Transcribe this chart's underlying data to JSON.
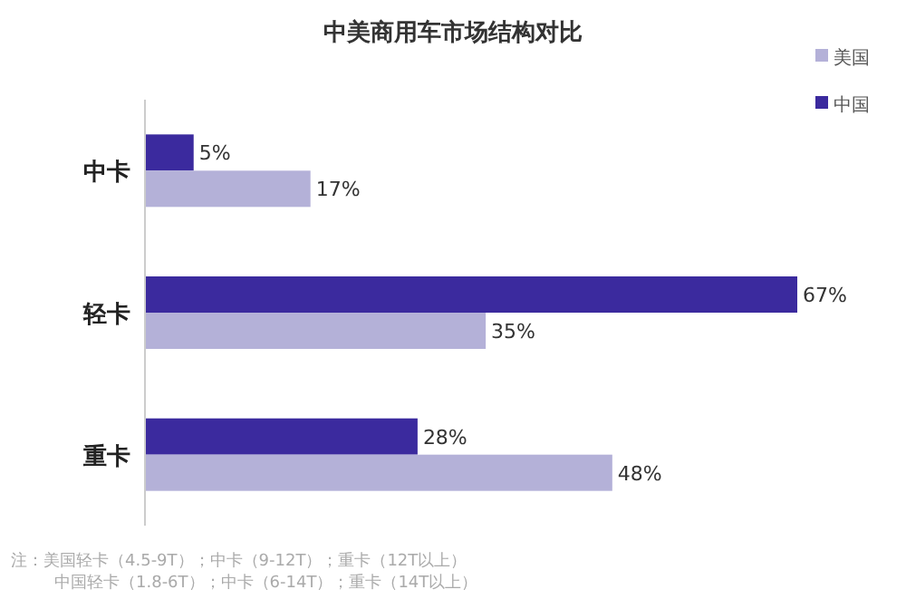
{
  "chart_data": {
    "type": "bar",
    "orientation": "horizontal",
    "title": "中美商用车市场结构对比",
    "categories": [
      "中卡",
      "轻卡",
      "重卡"
    ],
    "series": [
      {
        "name": "中国",
        "color": "#3b2a9e",
        "values": [
          5,
          67,
          28
        ],
        "value_labels": [
          "5%",
          "67%",
          "28%"
        ]
      },
      {
        "name": "美国",
        "color": "#b4b1d8",
        "values": [
          17,
          35,
          48
        ],
        "value_labels": [
          "17%",
          "35%",
          "48%"
        ]
      }
    ],
    "legend": "top right",
    "annotations": [
      "注：美国轻卡（4.5-9T）；中卡（9-12T）；重卡（12T以上）",
      "中国轻卡（1.8-6T）；中卡（6-14T）；重卡（14T以上）"
    ]
  }
}
